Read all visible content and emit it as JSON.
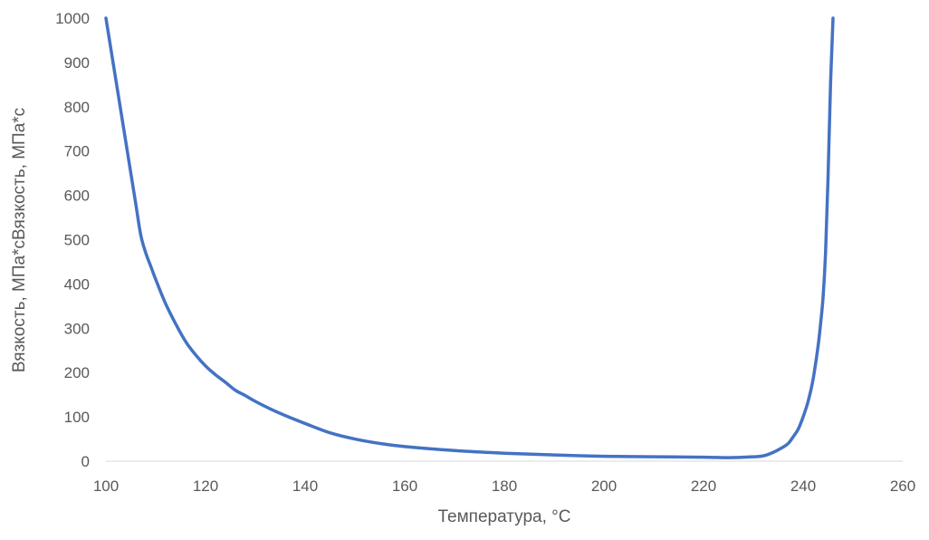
{
  "chart_data": {
    "type": "line",
    "title": "",
    "xlabel": "Температура, °С",
    "ylabel": "Вязкость, МПа*сВязкость, МПа*с",
    "xlim": [
      100,
      260
    ],
    "ylim": [
      0,
      1000
    ],
    "x_ticks": [
      100,
      120,
      140,
      160,
      180,
      200,
      220,
      240,
      260
    ],
    "y_ticks": [
      0,
      100,
      200,
      300,
      400,
      500,
      600,
      700,
      800,
      900,
      1000
    ],
    "grid": false,
    "legend": "none",
    "series": [
      {
        "color": "#4472C4",
        "x": [
          100,
          101,
          102,
          103,
          104,
          105,
          106,
          107,
          108,
          109,
          110,
          112,
          114,
          116,
          118,
          120,
          122,
          124,
          126,
          128,
          130,
          133,
          136,
          140,
          145,
          150,
          155,
          160,
          170,
          180,
          190,
          200,
          210,
          220,
          225,
          230,
          232,
          234,
          236,
          237,
          238,
          239,
          240,
          241,
          242,
          243,
          243.5,
          244,
          244.5,
          245,
          245.5,
          246
        ],
        "y": [
          1000,
          930,
          860,
          790,
          720,
          650,
          580,
          510,
          470,
          440,
          410,
          355,
          310,
          270,
          240,
          215,
          195,
          178,
          160,
          148,
          135,
          118,
          103,
          85,
          64,
          50,
          40,
          33,
          24,
          18,
          14,
          11,
          10,
          9,
          8,
          10,
          12,
          20,
          32,
          40,
          55,
          72,
          100,
          135,
          185,
          260,
          310,
          370,
          470,
          640,
          850,
          1000
        ]
      }
    ]
  }
}
